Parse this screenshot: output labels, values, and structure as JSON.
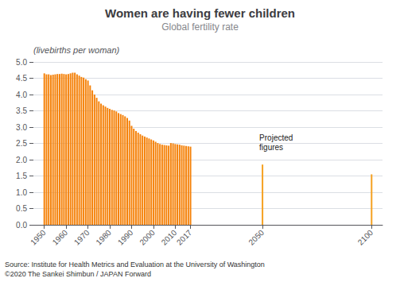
{
  "chart_data": {
    "type": "bar",
    "title": "Women are having fewer children",
    "subtitle": "Global fertility rate",
    "ylabel": "(livebirths per woman)",
    "annotation": "Projected\nfigures",
    "source": "Source: Institute for Health Metrics and Evaluation at the University of Washington\n©2020 The Sankei Shimbun / JAPAN Forward",
    "x": [
      1950,
      1951,
      1952,
      1953,
      1954,
      1955,
      1956,
      1957,
      1958,
      1959,
      1960,
      1961,
      1962,
      1963,
      1964,
      1965,
      1966,
      1967,
      1968,
      1969,
      1970,
      1971,
      1972,
      1973,
      1974,
      1975,
      1976,
      1977,
      1978,
      1979,
      1980,
      1981,
      1982,
      1983,
      1984,
      1985,
      1986,
      1987,
      1988,
      1989,
      1990,
      1991,
      1992,
      1993,
      1994,
      1995,
      1996,
      1997,
      1998,
      1999,
      2000,
      2001,
      2002,
      2003,
      2004,
      2005,
      2006,
      2007,
      2008,
      2009,
      2010,
      2011,
      2012,
      2013,
      2014,
      2015,
      2016,
      2017,
      2050,
      2100
    ],
    "values": [
      4.65,
      4.62,
      4.62,
      4.6,
      4.61,
      4.62,
      4.63,
      4.63,
      4.64,
      4.63,
      4.62,
      4.63,
      4.65,
      4.67,
      4.67,
      4.62,
      4.58,
      4.54,
      4.52,
      4.47,
      4.43,
      4.28,
      4.13,
      4.0,
      3.9,
      3.79,
      3.72,
      3.67,
      3.63,
      3.59,
      3.56,
      3.53,
      3.51,
      3.48,
      3.43,
      3.4,
      3.37,
      3.33,
      3.28,
      3.2,
      3.04,
      2.95,
      2.88,
      2.83,
      2.78,
      2.74,
      2.71,
      2.68,
      2.65,
      2.62,
      2.59,
      2.55,
      2.51,
      2.48,
      2.46,
      2.45,
      2.44,
      2.43,
      2.51,
      2.5,
      2.48,
      2.47,
      2.46,
      2.44,
      2.43,
      2.42,
      2.41,
      2.4,
      1.85,
      1.55
    ],
    "colors": [
      "#F5820A",
      "#F5820A",
      "#F5820A",
      "#F5820A",
      "#F5820A",
      "#F5820A",
      "#F5820A",
      "#F5820A",
      "#F5820A",
      "#F5820A",
      "#F5820A",
      "#F5820A",
      "#F5820A",
      "#F5820A",
      "#F5820A",
      "#F5820A",
      "#F5820A",
      "#F5820A",
      "#F5820A",
      "#F5820A",
      "#F5820A",
      "#F5820A",
      "#F5820A",
      "#F5820A",
      "#F5820A",
      "#F5820A",
      "#F5820A",
      "#F5820A",
      "#F5820A",
      "#F5820A",
      "#F5820A",
      "#F5820A",
      "#F5820A",
      "#F5820A",
      "#F5820A",
      "#F5820A",
      "#F5820A",
      "#F5820A",
      "#F5820A",
      "#F5820A",
      "#F5820A",
      "#F5820A",
      "#F5820A",
      "#F5820A",
      "#F5820A",
      "#F5820A",
      "#F5820A",
      "#F5820A",
      "#F5820A",
      "#F5820A",
      "#F5820A",
      "#F5820A",
      "#F5820A",
      "#F5820A",
      "#F5820A",
      "#F5820A",
      "#F5820A",
      "#F5820A",
      "#F5820A",
      "#F5820A",
      "#F5820A",
      "#F5820A",
      "#F5820A",
      "#F5820A",
      "#F5820A",
      "#F5820A",
      "#F5820A",
      "#F5820A",
      "#F5A020",
      "#F5A020"
    ],
    "xlim": [
      1945,
      2105
    ],
    "xticks": [
      1950,
      1960,
      1970,
      1980,
      1990,
      2000,
      2010,
      2017,
      2050,
      2100
    ],
    "ylim": [
      0,
      5
    ],
    "yticks": [
      {
        "value": 0,
        "label": "0.0"
      },
      0.5,
      {
        "value": 1,
        "label": "1.0"
      },
      1.5,
      {
        "value": 2,
        "label": "2.0"
      },
      2.5,
      {
        "value": 3,
        "label": "3.0"
      },
      3.5,
      {
        "value": 4,
        "label": "4.0"
      },
      4.5,
      {
        "value": 5,
        "label": "5.0"
      }
    ],
    "grid": true
  }
}
